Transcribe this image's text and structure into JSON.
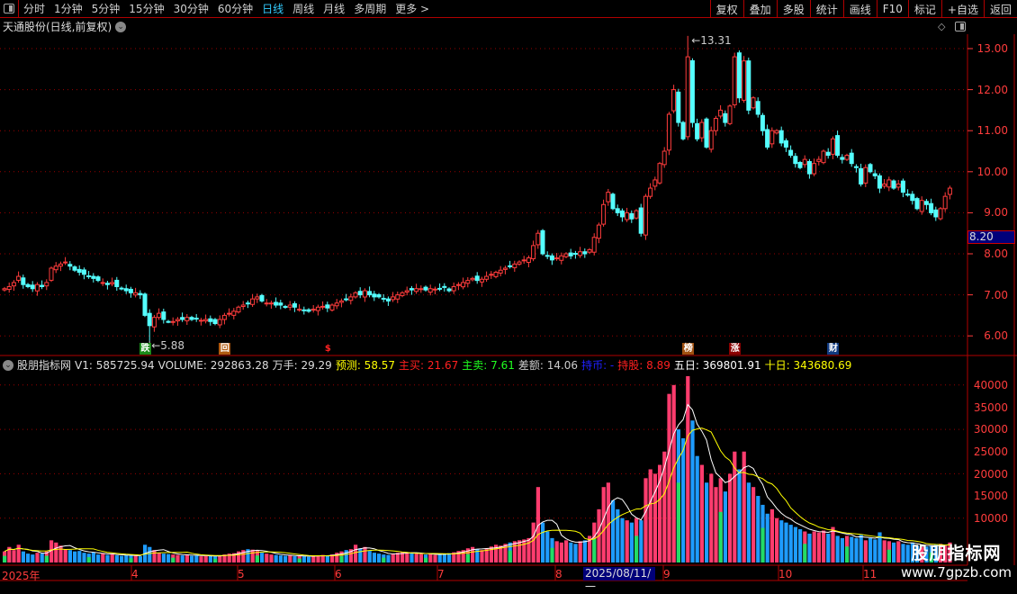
{
  "toolbar": {
    "periods": [
      "分时",
      "1分钟",
      "5分钟",
      "15分钟",
      "30分钟",
      "60分钟",
      "日线",
      "周线",
      "月线",
      "多周期",
      "更多 >"
    ],
    "active_period": "日线",
    "buttons": [
      "复权",
      "叠加",
      "多股",
      "统计",
      "画线",
      "F10",
      "标记",
      "+自选",
      "返回"
    ]
  },
  "title": "天通股份(日线,前复权)",
  "colors": {
    "up": "#ff3c3c",
    "down": "#54ffff",
    "vol_up": "#ff3c6e",
    "vol_down": "#1e9cff",
    "ma5": "#ffffff",
    "ma10": "#ffff00",
    "grid": "#9a0000",
    "axis": "#ff3c3c"
  },
  "price_axis": {
    "ticks": [
      "13.00",
      "12.00",
      "11.00",
      "10.00",
      "9.00",
      "8.00",
      "7.00",
      "6.00"
    ],
    "current": "8.20"
  },
  "price_notes": {
    "high": "13.31",
    "low": "5.88"
  },
  "markers": [
    {
      "text": "跌",
      "color": "#1a8a1a",
      "idx": 30
    },
    {
      "text": "回",
      "color": "#b05a10",
      "idx": 47
    },
    {
      "text": "$",
      "color": "#000",
      "idx": 69
    },
    {
      "text": "榜",
      "color": "#a05010",
      "idx": 146
    },
    {
      "text": "涨",
      "color": "#8a0000",
      "idx": 156
    },
    {
      "text": "财",
      "color": "#103a80",
      "idx": 177
    }
  ],
  "volume_header": [
    {
      "text": "股朋指标网",
      "color": "#dddddd"
    },
    {
      "text": "V1: 585725.94",
      "color": "#dddddd"
    },
    {
      "text": "VOLUME: 292863.28",
      "color": "#dddddd"
    },
    {
      "text": "万手: 29.29",
      "color": "#dddddd"
    },
    {
      "text": "预测: 58.57",
      "color": "#ffff00"
    },
    {
      "text": "主买: 21.67",
      "color": "#ff2020"
    },
    {
      "text": "主卖: 7.61",
      "color": "#20ff20"
    },
    {
      "text": "差额: 14.06",
      "color": "#cccccc"
    },
    {
      "text": "持币: -",
      "color": "#2020ff"
    },
    {
      "text": "持股: 8.89",
      "color": "#ff2020"
    },
    {
      "text": "五日: 369801.91",
      "color": "#ffffff"
    },
    {
      "text": "十日: 343680.69",
      "color": "#ffff00"
    }
  ],
  "volume_axis": {
    "ticks": [
      "40000",
      "35000",
      "30000",
      "25000",
      "20000",
      "15000",
      "10000"
    ]
  },
  "date_axis": {
    "labels": [
      "2025年",
      "4",
      "5",
      "6",
      "7",
      "8",
      "9",
      "10",
      "11"
    ],
    "cursor_date": "2025/08/11/一"
  },
  "watermark": {
    "name": "股朋指标网",
    "url": "www.7gpzb.com"
  },
  "chart_data": {
    "type": "candlestick",
    "close": [
      7.15,
      7.2,
      7.3,
      7.45,
      7.25,
      7.2,
      7.15,
      7.25,
      7.2,
      7.3,
      7.65,
      7.7,
      7.75,
      7.8,
      7.7,
      7.6,
      7.55,
      7.5,
      7.45,
      7.4,
      7.35,
      7.3,
      7.25,
      7.3,
      7.2,
      7.15,
      7.1,
      7.05,
      7.05,
      7.0,
      6.5,
      6.25,
      6.45,
      6.55,
      6.4,
      6.35,
      6.35,
      6.4,
      6.4,
      6.45,
      6.4,
      6.42,
      6.38,
      6.4,
      6.35,
      6.3,
      6.4,
      6.5,
      6.55,
      6.6,
      6.7,
      6.75,
      6.8,
      6.9,
      6.95,
      6.85,
      6.8,
      6.8,
      6.75,
      6.75,
      6.7,
      6.75,
      6.7,
      6.65,
      6.62,
      6.6,
      6.65,
      6.7,
      6.72,
      6.68,
      6.75,
      6.8,
      6.85,
      6.9,
      6.95,
      7.05,
      7.0,
      7.1,
      7.0,
      6.95,
      6.95,
      6.9,
      6.85,
      6.95,
      7.0,
      7.05,
      7.1,
      7.12,
      7.15,
      7.15,
      7.12,
      7.15,
      7.14,
      7.15,
      7.18,
      7.1,
      7.2,
      7.25,
      7.3,
      7.35,
      7.4,
      7.35,
      7.38,
      7.45,
      7.5,
      7.55,
      7.6,
      7.65,
      7.7,
      7.75,
      7.8,
      7.85,
      7.9,
      8.2,
      8.5,
      8.0,
      7.95,
      7.85,
      7.9,
      7.95,
      8.0,
      7.95,
      8.0,
      8.05,
      8.0,
      8.1,
      8.4,
      8.7,
      9.2,
      9.5,
      9.1,
      9.0,
      8.9,
      9.0,
      8.85,
      9.05,
      8.5,
      9.4,
      9.6,
      9.8,
      10.2,
      10.5,
      11.4,
      12.0,
      11.2,
      10.8,
      12.8,
      11.2,
      10.8,
      11.2,
      10.6,
      11.0,
      11.3,
      11.5,
      11.2,
      11.6,
      12.8,
      11.8,
      12.7,
      11.5,
      11.8,
      11.4,
      11.0,
      10.6,
      11.0,
      11.0,
      10.7,
      10.6,
      10.4,
      10.2,
      10.1,
      10.3,
      9.95,
      10.2,
      10.3,
      10.5,
      10.4,
      10.8,
      10.4,
      10.3,
      10.4,
      10.2,
      10.1,
      9.7,
      10.1,
      10.0,
      9.9,
      9.6,
      9.7,
      9.8,
      9.6,
      9.7,
      9.5,
      9.45,
      9.3,
      9.1,
      9.3,
      9.2,
      9.0,
      8.9,
      9.1,
      9.4,
      9.6
    ],
    "volume": [
      2500,
      3500,
      2800,
      4000,
      2500,
      2000,
      1800,
      2200,
      2000,
      2500,
      5000,
      4500,
      3800,
      3000,
      2800,
      2500,
      2600,
      2200,
      2000,
      2300,
      1800,
      2000,
      1700,
      1900,
      1600,
      1500,
      1700,
      1600,
      1500,
      1400,
      4000,
      3500,
      2800,
      2200,
      2000,
      1900,
      1800,
      1700,
      1600,
      1800,
      1500,
      1600,
      1400,
      1500,
      1500,
      1400,
      1600,
      1800,
      2000,
      2100,
      2500,
      2800,
      3000,
      2900,
      2600,
      2200,
      2000,
      1800,
      1700,
      1600,
      1500,
      1600,
      1400,
      1500,
      1400,
      1300,
      1500,
      1600,
      1700,
      1500,
      1800,
      2200,
      2500,
      2800,
      3000,
      4000,
      3200,
      3500,
      2600,
      2200,
      2000,
      1800,
      1700,
      2000,
      2200,
      2400,
      2300,
      2100,
      2000,
      1900,
      1800,
      1900,
      1700,
      1800,
      2000,
      2100,
      2300,
      2600,
      2800,
      3200,
      3500,
      3000,
      2800,
      3200,
      3600,
      4000,
      3800,
      4200,
      4500,
      4800,
      5000,
      5200,
      5500,
      9000,
      17000,
      9000,
      7000,
      5500,
      4800,
      4500,
      5000,
      4500,
      4200,
      4800,
      5000,
      6000,
      9000,
      12000,
      17000,
      18000,
      14000,
      12000,
      10000,
      9500,
      9000,
      10000,
      9500,
      19000,
      21000,
      20000,
      22000,
      25000,
      38000,
      40000,
      30000,
      28000,
      42000,
      32000,
      24000,
      22000,
      18000,
      20000,
      17000,
      19000,
      16000,
      20000,
      25000,
      21000,
      25000,
      18000,
      17000,
      15000,
      13000,
      11000,
      12000,
      10000,
      9500,
      9000,
      8500,
      8000,
      7500,
      7000,
      6500,
      7000,
      6800,
      7200,
      6500,
      8000,
      6000,
      5500,
      6000,
      5800,
      5500,
      6200,
      5000,
      5500,
      5200,
      6800,
      5000,
      4800,
      4500,
      4800,
      4200,
      4000,
      4500,
      3800,
      3500,
      3600,
      3800,
      4000,
      4200,
      3800,
      4500
    ],
    "high_value": 13.31,
    "low_value": 5.88,
    "price_range": [
      5.6,
      13.4
    ],
    "volume_range": [
      0,
      42000
    ],
    "series_lines": [
      "MA5 volume (white)",
      "MA10 volume (yellow)"
    ]
  }
}
